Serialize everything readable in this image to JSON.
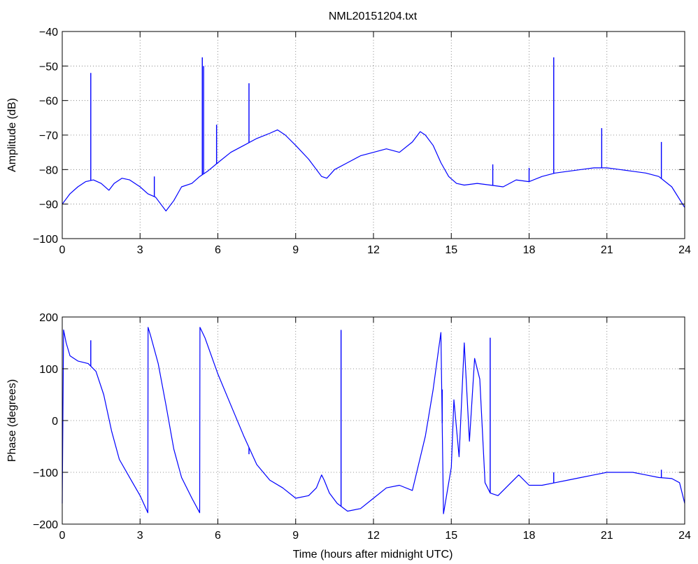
{
  "chart_data": [
    {
      "type": "line",
      "title": "NML20151204.txt",
      "xlabel": "",
      "ylabel": "Amplitude (dB)",
      "xlim": [
        0,
        24
      ],
      "ylim": [
        -100,
        -40
      ],
      "xticks": [
        "0",
        "3",
        "6",
        "9",
        "12",
        "15",
        "18",
        "21",
        "24"
      ],
      "yticks": [
        "−40",
        "−50",
        "−60",
        "−70",
        "−80",
        "−90",
        "−100"
      ],
      "grid": true,
      "series": [
        {
          "color": "#0000ff",
          "x": [
            0,
            0.3,
            0.6,
            0.9,
            1.2,
            1.5,
            1.8,
            2.0,
            2.3,
            2.6,
            3.0,
            3.3,
            3.6,
            3.8,
            4.0,
            4.3,
            4.6,
            5.0,
            5.3,
            5.6,
            6.0,
            6.5,
            7.0,
            7.5,
            8.0,
            8.3,
            8.6,
            9.0,
            9.5,
            10.0,
            10.2,
            10.5,
            11.0,
            11.5,
            12.0,
            12.5,
            13.0,
            13.5,
            13.8,
            14.0,
            14.3,
            14.6,
            14.9,
            15.2,
            15.5,
            16.0,
            16.5,
            17.0,
            17.5,
            18.0,
            18.5,
            19.0,
            19.5,
            20.0,
            20.5,
            21.0,
            21.5,
            22.0,
            22.5,
            23.0,
            23.5,
            24.0
          ],
          "y": [
            -90,
            -87,
            -85,
            -83.5,
            -83,
            -84,
            -86,
            -84,
            -82.5,
            -83,
            -85,
            -87,
            -88,
            -90,
            -92,
            -89,
            -85,
            -84,
            -82,
            -80.5,
            -78,
            -75,
            -73,
            -71,
            -69.5,
            -68.5,
            -70,
            -73,
            -77,
            -82,
            -82.5,
            -80,
            -78,
            -76,
            -75,
            -74,
            -75,
            -72,
            -69,
            -70,
            -73,
            -78,
            -82,
            -84,
            -84.5,
            -84,
            -84.5,
            -85,
            -83,
            -83.5,
            -82,
            -81,
            -80.5,
            -80,
            -79.5,
            -79.5,
            -80,
            -80.5,
            -81,
            -82,
            -85,
            -91
          ]
        }
      ],
      "spikes": [
        {
          "x": 1.1,
          "y": -52
        },
        {
          "x": 3.55,
          "y": -82
        },
        {
          "x": 5.4,
          "y": -47.5
        },
        {
          "x": 5.45,
          "y": -50
        },
        {
          "x": 5.95,
          "y": -67
        },
        {
          "x": 7.2,
          "y": -55
        },
        {
          "x": 16.6,
          "y": -78.5
        },
        {
          "x": 18.0,
          "y": -79.5
        },
        {
          "x": 18.95,
          "y": -47.5
        },
        {
          "x": 20.8,
          "y": -68
        },
        {
          "x": 23.1,
          "y": -72
        }
      ]
    },
    {
      "type": "line",
      "title": "",
      "xlabel": "Time (hours after midnight UTC)",
      "ylabel": "Phase (degrees)",
      "xlim": [
        0,
        24
      ],
      "ylim": [
        -200,
        200
      ],
      "xticks": [
        "0",
        "3",
        "6",
        "9",
        "12",
        "15",
        "18",
        "21",
        "24"
      ],
      "yticks": [
        "200",
        "100",
        "0",
        "−100",
        "−200"
      ],
      "grid": true,
      "series": [
        {
          "color": "#0000ff",
          "x": [
            0,
            0.05,
            0.15,
            0.3,
            0.6,
            1.0,
            1.3,
            1.6,
            1.9,
            2.2,
            2.6,
            3.0,
            3.3,
            3.31,
            3.4,
            3.7,
            4.0,
            4.3,
            4.6,
            5.0,
            5.3,
            5.31,
            5.5,
            6.0,
            6.5,
            7.0,
            7.5,
            8.0,
            8.5,
            9.0,
            9.5,
            9.8,
            10.0,
            10.1,
            10.3,
            10.6,
            11.0,
            11.5,
            12.0,
            12.5,
            13.0,
            13.5,
            14.0,
            14.3,
            14.6,
            14.7,
            15.0,
            15.1,
            15.3,
            15.5,
            15.7,
            15.9,
            16.1,
            16.3,
            16.5,
            16.8,
            17.0,
            17.3,
            17.6,
            18.0,
            18.5,
            19.0,
            19.5,
            20.0,
            20.5,
            21.0,
            21.5,
            22.0,
            22.5,
            23.0,
            23.5,
            23.8,
            24.0
          ],
          "y": [
            -160,
            175,
            150,
            125,
            115,
            110,
            95,
            50,
            -20,
            -75,
            -110,
            -145,
            -178,
            180,
            165,
            110,
            30,
            -55,
            -110,
            -150,
            -178,
            180,
            160,
            90,
            30,
            -30,
            -85,
            -115,
            -130,
            -150,
            -145,
            -130,
            -105,
            -115,
            -140,
            -160,
            -175,
            -170,
            -150,
            -130,
            -125,
            -135,
            -30,
            60,
            170,
            -180,
            -90,
            40,
            -70,
            150,
            -40,
            120,
            80,
            -120,
            -140,
            -145,
            -135,
            -120,
            -105,
            -125,
            -125,
            -120,
            -115,
            -110,
            -105,
            -100,
            -100,
            -100,
            -105,
            -110,
            -112,
            -120,
            -160
          ]
        }
      ],
      "spikes": [
        {
          "x": 1.1,
          "y": 155
        },
        {
          "x": 7.2,
          "y": -65
        },
        {
          "x": 10.75,
          "y": 175
        },
        {
          "x": 14.65,
          "y": 60
        },
        {
          "x": 16.5,
          "y": 160
        },
        {
          "x": 18.95,
          "y": -100
        },
        {
          "x": 23.1,
          "y": -95
        }
      ]
    }
  ]
}
